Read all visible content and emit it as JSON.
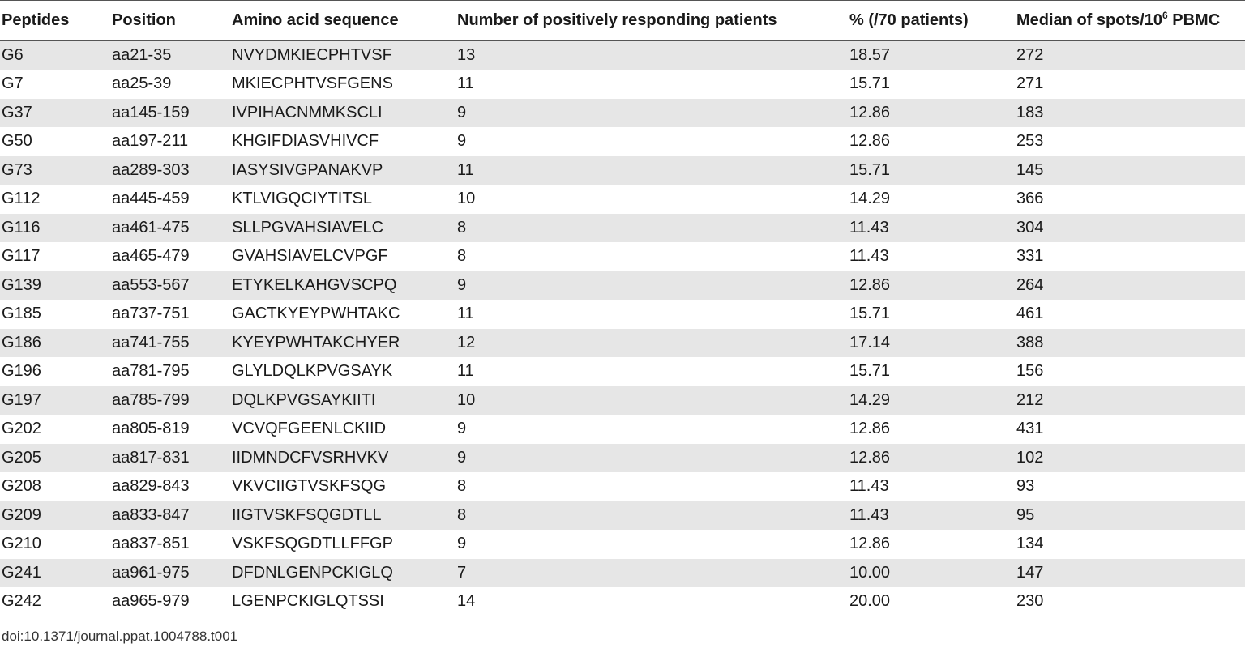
{
  "headers": {
    "peptides": "Peptides",
    "position": "Position",
    "sequence": "Amino acid sequence",
    "responders": "Number of positively responding patients",
    "percent": "% (/70 patients)",
    "median_prefix": "Median of spots/10",
    "median_exp": "6",
    "median_suffix": " PBMC"
  },
  "rows": [
    [
      "G6",
      "aa21-35",
      "NVYDMKIECPHTVSF",
      "13",
      "18.57",
      "272"
    ],
    [
      "G7",
      "aa25-39",
      "MKIECPHTVSFGENS",
      "11",
      "15.71",
      "271"
    ],
    [
      "G37",
      "aa145-159",
      "IVPIHACNMMKSCLI",
      "9",
      "12.86",
      "183"
    ],
    [
      "G50",
      "aa197-211",
      "KHGIFDIASVHIVCF",
      "9",
      "12.86",
      "253"
    ],
    [
      "G73",
      "aa289-303",
      "IASYSIVGPANAKVP",
      "11",
      "15.71",
      "145"
    ],
    [
      "G112",
      "aa445-459",
      "KTLVIGQCIYTITSL",
      "10",
      "14.29",
      "366"
    ],
    [
      "G116",
      "aa461-475",
      "SLLPGVAHSIAVELC",
      "8",
      "11.43",
      "304"
    ],
    [
      "G117",
      "aa465-479",
      "GVAHSIAVELCVPGF",
      "8",
      "11.43",
      "331"
    ],
    [
      "G139",
      "aa553-567",
      "ETYKELKAHGVSCPQ",
      "9",
      "12.86",
      "264"
    ],
    [
      "G185",
      "aa737-751",
      "GACTKYEYPWHTAKC",
      "11",
      "15.71",
      "461"
    ],
    [
      "G186",
      "aa741-755",
      "KYEYPWHTAKCHYER",
      "12",
      "17.14",
      "388"
    ],
    [
      "G196",
      "aa781-795",
      "GLYLDQLKPVGSAYK",
      "11",
      "15.71",
      "156"
    ],
    [
      "G197",
      "aa785-799",
      "DQLKPVGSAYKIITI",
      "10",
      "14.29",
      "212"
    ],
    [
      "G202",
      "aa805-819",
      "VCVQFGEENLCKIID",
      "9",
      "12.86",
      "431"
    ],
    [
      "G205",
      "aa817-831",
      "IIDMNDCFVSRHVKV",
      "9",
      "12.86",
      "102"
    ],
    [
      "G208",
      "aa829-843",
      "VKVCIIGTVSKFSQG",
      "8",
      "11.43",
      "93"
    ],
    [
      "G209",
      "aa833-847",
      "IIGTVSKFSQGDTLL",
      "8",
      "11.43",
      "95"
    ],
    [
      "G210",
      "aa837-851",
      "VSKFSQGDTLLFFGP",
      "9",
      "12.86",
      "134"
    ],
    [
      "G241",
      "aa961-975",
      "DFDNLGENPCKIGLQ",
      "7",
      "10.00",
      "147"
    ],
    [
      "G242",
      "aa965-979",
      "LGENPCKIGLQTSSI",
      "14",
      "20.00",
      "230"
    ]
  ],
  "doi": "doi:10.1371/journal.ppat.1004788.t001"
}
